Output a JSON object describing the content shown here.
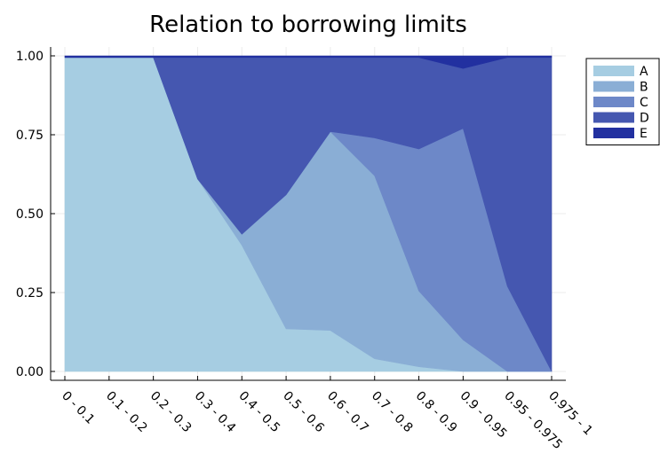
{
  "chart_data": {
    "type": "area",
    "stacked": true,
    "title": "Relation to borrowing limits",
    "xlabel": "",
    "ylabel": "",
    "categories": [
      "0 - 0.1",
      "0.1 - 0.2",
      "0.2 - 0.3",
      "0.3 - 0.4",
      "0.4 - 0.5",
      "0.5 - 0.6",
      "0.6 - 0.7",
      "0.7 - 0.8",
      "0.8 - 0.9",
      "0.9 - 0.95",
      "0.95 - 0.975",
      "0.975 - 1"
    ],
    "ylim": [
      0,
      1
    ],
    "yticks": [
      "0.00",
      "0.25",
      "0.50",
      "0.75",
      "1.00"
    ],
    "grid": true,
    "legend_position": "top-right outside",
    "series": [
      {
        "name": "A",
        "color": "#a6cde2",
        "values": [
          0.995,
          0.995,
          0.995,
          0.61,
          0.4,
          0.135,
          0.13,
          0.04,
          0.015,
          0.0,
          0.0,
          0.0
        ]
      },
      {
        "name": "B",
        "color": "#8aaed5",
        "values": [
          0.0,
          0.0,
          0.0,
          0.0,
          0.035,
          0.425,
          0.63,
          0.58,
          0.24,
          0.1,
          0.0,
          0.0
        ]
      },
      {
        "name": "C",
        "color": "#6d88c8",
        "values": [
          0.0,
          0.0,
          0.0,
          0.0,
          0.0,
          0.0,
          0.0,
          0.12,
          0.45,
          0.67,
          0.27,
          0.0
        ]
      },
      {
        "name": "D",
        "color": "#4557b0",
        "values": [
          0.0,
          0.0,
          0.0,
          0.385,
          0.56,
          0.435,
          0.235,
          0.255,
          0.29,
          0.19,
          0.725,
          0.995
        ]
      },
      {
        "name": "E",
        "color": "#2230a0",
        "values": [
          0.005,
          0.005,
          0.005,
          0.005,
          0.005,
          0.005,
          0.005,
          0.005,
          0.005,
          0.04,
          0.005,
          0.005
        ]
      }
    ]
  }
}
